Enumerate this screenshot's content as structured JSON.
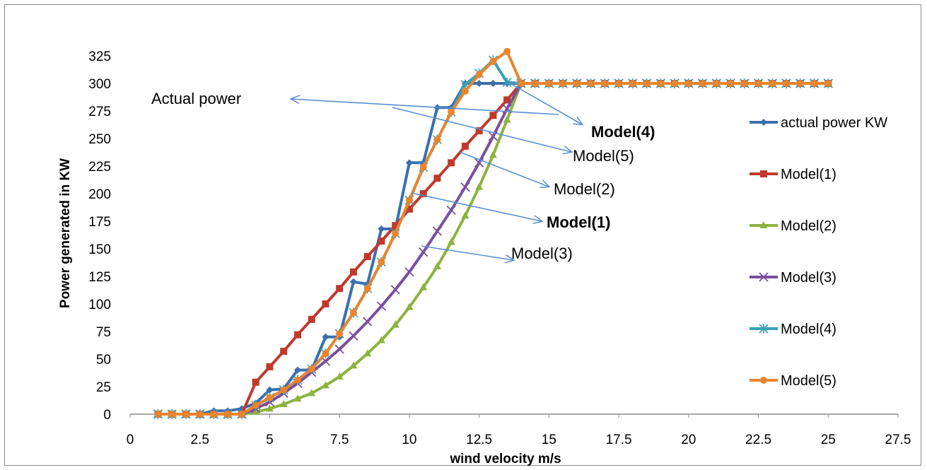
{
  "chart_data": {
    "type": "line",
    "title": "",
    "xlabel": "wind velocity m/s",
    "ylabel": "Power generated in KW",
    "xlim": [
      0,
      27.5
    ],
    "ylim": [
      0,
      325
    ],
    "x_ticks": [
      "0",
      "2.5",
      "5",
      "7.5",
      "10",
      "12.5",
      "15",
      "17.5",
      "20",
      "22.5",
      "25",
      "27.5"
    ],
    "y_ticks": [
      "0",
      "25",
      "50",
      "75",
      "100",
      "125",
      "150",
      "175",
      "200",
      "225",
      "250",
      "275",
      "300",
      "325"
    ],
    "grid": false,
    "legend_position": "right",
    "series": [
      {
        "name": " actual power KW",
        "color": "#3a6fb0",
        "marker": "diamond",
        "x": [
          1,
          1.5,
          2,
          2.5,
          3,
          3.5,
          4,
          4.5,
          5,
          5.5,
          6,
          6.5,
          7,
          7.5,
          8,
          8.5,
          9,
          9.5,
          10,
          10.5,
          11,
          11.5,
          12,
          12.5,
          13,
          13.5,
          14,
          14.5,
          15,
          15.5,
          16,
          16.5,
          17,
          17.5,
          18,
          18.5,
          19,
          19.5,
          20,
          20.5,
          21,
          21.5,
          22,
          22.5,
          23,
          23.5,
          24,
          24.5,
          25
        ],
        "y": [
          0,
          0,
          0,
          0,
          3,
          3,
          5,
          10,
          22,
          23,
          40,
          40,
          70,
          70,
          120,
          118,
          168,
          168,
          228,
          228,
          278,
          278,
          300,
          300,
          300,
          300,
          300,
          300,
          300,
          300,
          300,
          300,
          300,
          300,
          300,
          300,
          300,
          300,
          300,
          300,
          300,
          300,
          300,
          300,
          300,
          300,
          300,
          300,
          300
        ]
      },
      {
        "name": "Model(1)",
        "color": "#c0392b",
        "marker": "square",
        "x": [
          1,
          1.5,
          2,
          2.5,
          3,
          3.5,
          4,
          4.5,
          5,
          5.5,
          6,
          6.5,
          7,
          7.5,
          8,
          8.5,
          9,
          9.5,
          10,
          10.5,
          11,
          11.5,
          12,
          12.5,
          13,
          13.5,
          14,
          14.5,
          15,
          15.5,
          16,
          16.5,
          17,
          17.5,
          18,
          18.5,
          19,
          19.5,
          20,
          20.5,
          21,
          21.5,
          22,
          22.5,
          23,
          23.5,
          24,
          24.5,
          25
        ],
        "y": [
          0,
          0,
          0,
          0,
          0,
          0,
          0,
          29,
          43,
          57,
          72,
          86,
          100,
          114,
          129,
          143,
          157,
          171,
          186,
          200,
          214,
          228,
          243,
          257,
          271,
          285,
          300,
          300,
          300,
          300,
          300,
          300,
          300,
          300,
          300,
          300,
          300,
          300,
          300,
          300,
          300,
          300,
          300,
          300,
          300,
          300,
          300,
          300,
          300
        ]
      },
      {
        "name": "Model(2)",
        "color": "#8db33f",
        "marker": "triangle",
        "x": [
          1,
          1.5,
          2,
          2.5,
          3,
          3.5,
          4,
          4.5,
          5,
          5.5,
          6,
          6.5,
          7,
          7.5,
          8,
          8.5,
          9,
          9.5,
          10,
          10.5,
          11,
          11.5,
          12,
          12.5,
          13,
          13.5,
          14,
          14.5,
          15,
          15.5,
          16,
          16.5,
          17,
          17.5,
          18,
          18.5,
          19,
          19.5,
          20,
          20.5,
          21,
          21.5,
          22,
          22.5,
          23,
          23.5,
          24,
          24.5,
          25
        ],
        "y": [
          0,
          0,
          0,
          0,
          0,
          0,
          0,
          2,
          5,
          9,
          14,
          19,
          26,
          34,
          44,
          55,
          67,
          81,
          97,
          115,
          134,
          156,
          180,
          206,
          235,
          267,
          300,
          300,
          300,
          300,
          300,
          300,
          300,
          300,
          300,
          300,
          300,
          300,
          300,
          300,
          300,
          300,
          300,
          300,
          300,
          300,
          300,
          300,
          300
        ]
      },
      {
        "name": "Model(3)",
        "color": "#7a4f9e",
        "marker": "x",
        "x": [
          1,
          1.5,
          2,
          2.5,
          3,
          3.5,
          4,
          4.5,
          5,
          5.5,
          6,
          6.5,
          7,
          7.5,
          8,
          8.5,
          9,
          9.5,
          10,
          10.5,
          11,
          11.5,
          12,
          12.5,
          13,
          13.5,
          14,
          14.5,
          15,
          15.5,
          16,
          16.5,
          17,
          17.5,
          18,
          18.5,
          19,
          19.5,
          20,
          20.5,
          21,
          21.5,
          22,
          22.5,
          23,
          23.5,
          24,
          24.5,
          25
        ],
        "y": [
          0,
          0,
          0,
          0,
          0,
          0,
          0,
          5,
          11,
          19,
          28,
          38,
          48,
          59,
          71,
          84,
          98,
          113,
          129,
          147,
          166,
          185,
          206,
          228,
          252,
          277,
          300,
          300,
          300,
          300,
          300,
          300,
          300,
          300,
          300,
          300,
          300,
          300,
          300,
          300,
          300,
          300,
          300,
          300,
          300,
          300,
          300,
          300,
          300
        ]
      },
      {
        "name": "Model(4)",
        "color": "#3aa0b8",
        "marker": "asterisk",
        "x": [
          1,
          1.5,
          2,
          2.5,
          3,
          3.5,
          4,
          4.5,
          5,
          5.5,
          6,
          6.5,
          7,
          7.5,
          8,
          8.5,
          9,
          9.5,
          10,
          10.5,
          11,
          11.5,
          12,
          12.5,
          13,
          13.5,
          14,
          14.5,
          15,
          15.5,
          16,
          16.5,
          17,
          17.5,
          18,
          18.5,
          19,
          19.5,
          20,
          20.5,
          21,
          21.5,
          22,
          22.5,
          23,
          23.5,
          24,
          24.5,
          25
        ],
        "y": [
          0,
          0,
          0,
          0,
          0,
          0,
          0,
          8,
          15,
          22,
          31,
          41,
          55,
          73,
          92,
          114,
          138,
          164,
          194,
          224,
          249,
          274,
          299,
          309,
          321,
          301,
          300,
          300,
          300,
          300,
          300,
          300,
          300,
          300,
          300,
          300,
          300,
          300,
          300,
          300,
          300,
          300,
          300,
          300,
          300,
          300,
          300,
          300,
          300
        ]
      },
      {
        "name": "Model(5)",
        "color": "#e8852e",
        "marker": "circle",
        "x": [
          1,
          1.5,
          2,
          2.5,
          3,
          3.5,
          4,
          4.5,
          5,
          5.5,
          6,
          6.5,
          7,
          7.5,
          8,
          8.5,
          9,
          9.5,
          10,
          10.5,
          11,
          11.5,
          12,
          12.5,
          13,
          13.5,
          14,
          14.5,
          15,
          15.5,
          16,
          16.5,
          17,
          17.5,
          18,
          18.5,
          19,
          19.5,
          20,
          20.5,
          21,
          21.5,
          22,
          22.5,
          23,
          23.5,
          24,
          24.5,
          25
        ],
        "y": [
          0,
          0,
          0,
          0,
          0,
          0,
          0,
          8,
          15,
          22,
          31,
          41,
          55,
          73,
          92,
          114,
          138,
          164,
          194,
          224,
          249,
          274,
          293,
          308,
          320,
          329,
          300,
          300,
          300,
          300,
          300,
          300,
          300,
          300,
          300,
          300,
          300,
          300,
          300,
          300,
          300,
          300,
          300,
          300,
          300,
          300,
          300,
          300,
          300
        ]
      }
    ],
    "annotations": [
      {
        "text": "Actual power",
        "arrow_to": [
          0.0,
          0.0
        ],
        "bold": false
      },
      {
        "text": "Model(4)",
        "bold": true
      },
      {
        "text": "Model(5)",
        "bold": false
      },
      {
        "text": "Model(2)",
        "bold": false
      },
      {
        "text": "Model(1)",
        "bold": true
      },
      {
        "text": "Model(3)",
        "bold": false
      }
    ]
  }
}
